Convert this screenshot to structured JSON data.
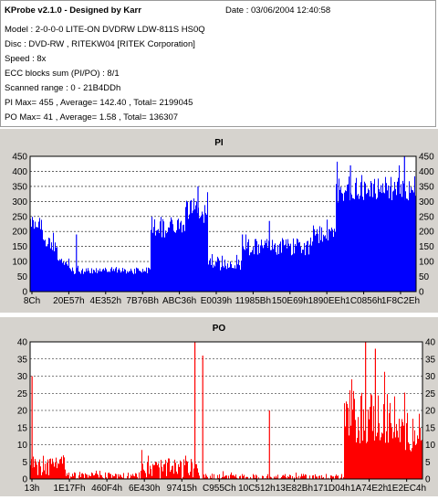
{
  "info": {
    "title": "KProbe v2.1.0 - Designed by Karr",
    "date": "Date : 03/06/2004 12:40:58",
    "lines": [
      "Model : 2-0-0-0 LITE-ON DVDRW LDW-811S   HS0Q",
      "Disc : DVD-RW , RITEKW04 [RITEK Corporation]",
      "Speed : 8x",
      "ECC blocks sum (PI/PO) : 8/1",
      "Scanned range : 0 - 21B4DDh",
      "PI Max= 455 , Average= 142.40 , Total= 2199045",
      "PO Max= 41 , Average= 1.58 , Total= 136307"
    ]
  },
  "chart_data": [
    {
      "type": "bar",
      "title": "PI",
      "color": "#0000ff",
      "ylim": [
        0,
        450
      ],
      "yticks": [
        0,
        50,
        100,
        150,
        200,
        250,
        300,
        350,
        400,
        450
      ],
      "xtick_labels": [
        "8Ch",
        "20E57h",
        "4E352h",
        "7B76Bh",
        "ABC36h",
        "E0039h",
        "11985Bh",
        "150E69h",
        "1890EEh",
        "1C0856h",
        "1F8C2Eh"
      ],
      "grid": true,
      "profile": [
        {
          "range": [
            0.0,
            0.03
          ],
          "base": 230,
          "noise": 25
        },
        {
          "range": [
            0.03,
            0.07
          ],
          "base": 160,
          "noise": 30
        },
        {
          "range": [
            0.07,
            0.1
          ],
          "base": 95,
          "noise": 15
        },
        {
          "range": [
            0.1,
            0.31
          ],
          "base": 70,
          "noise": 12
        },
        {
          "range": [
            0.31,
            0.4
          ],
          "base": 215,
          "noise": 35
        },
        {
          "range": [
            0.4,
            0.46
          ],
          "base": 265,
          "noise": 45
        },
        {
          "range": [
            0.46,
            0.55
          ],
          "base": 95,
          "noise": 25
        },
        {
          "range": [
            0.55,
            0.73
          ],
          "base": 150,
          "noise": 30
        },
        {
          "range": [
            0.73,
            0.79
          ],
          "base": 190,
          "noise": 30
        },
        {
          "range": [
            0.79,
            1.0
          ],
          "base": 340,
          "noise": 45
        }
      ],
      "spikes": [
        {
          "x": 0.12,
          "value": 190
        },
        {
          "x": 0.435,
          "value": 350
        },
        {
          "x": 0.55,
          "value": 190
        },
        {
          "x": 0.62,
          "value": 235
        },
        {
          "x": 0.83,
          "value": 420
        },
        {
          "x": 0.97,
          "value": 455
        }
      ]
    },
    {
      "type": "bar",
      "title": "PO",
      "color": "#ff0000",
      "ylim": [
        0,
        40
      ],
      "yticks": [
        0,
        5,
        10,
        15,
        20,
        25,
        30,
        35,
        40
      ],
      "xtick_labels": [
        "13h",
        "1E17Fh",
        "460F4h",
        "6E430h",
        "97415h",
        "C955Ch",
        "10C512h",
        "13E82Bh",
        "171D04h",
        "1A74E2h",
        "1E2EC4h"
      ],
      "grid": true,
      "profile": [
        {
          "range": [
            0.0,
            0.09
          ],
          "base": 4,
          "noise": 3
        },
        {
          "range": [
            0.09,
            0.28
          ],
          "base": 1,
          "noise": 1
        },
        {
          "range": [
            0.28,
            0.43
          ],
          "base": 3,
          "noise": 3
        },
        {
          "range": [
            0.43,
            0.8
          ],
          "base": 0.5,
          "noise": 1
        },
        {
          "range": [
            0.8,
            0.92
          ],
          "base": 18,
          "noise": 8
        },
        {
          "range": [
            0.92,
            1.0
          ],
          "base": 14,
          "noise": 6
        }
      ],
      "spikes": [
        {
          "x": 0.005,
          "value": 30
        },
        {
          "x": 0.42,
          "value": 41
        },
        {
          "x": 0.44,
          "value": 36
        },
        {
          "x": 0.61,
          "value": 20
        },
        {
          "x": 0.855,
          "value": 41
        },
        {
          "x": 0.88,
          "value": 38
        }
      ]
    }
  ]
}
